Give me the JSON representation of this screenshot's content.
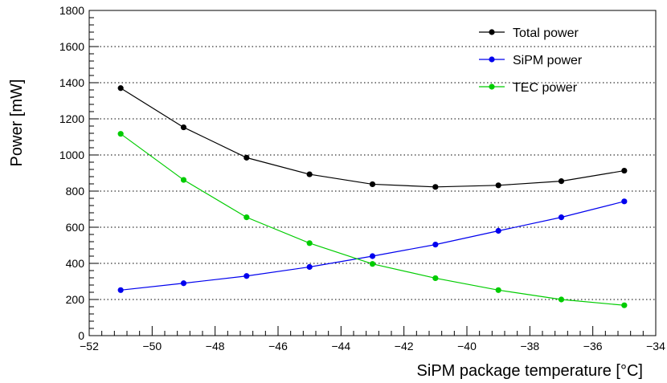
{
  "chart_data": {
    "type": "line",
    "title": "",
    "xlabel": "SiPM package temperature [°C]",
    "ylabel": "Power [mW]",
    "xlim": [
      -52,
      -34
    ],
    "ylim": [
      0,
      1800
    ],
    "xticks": [
      -52,
      -50,
      -48,
      -46,
      -44,
      -42,
      -40,
      -38,
      -36,
      -34
    ],
    "xtick_labels": [
      "−52",
      "−50",
      "−48",
      "−46",
      "−44",
      "−42",
      "−40",
      "−38",
      "−36",
      "−34"
    ],
    "yticks": [
      0,
      200,
      400,
      600,
      800,
      1000,
      1200,
      1400,
      1600,
      1800
    ],
    "ytick_labels": [
      "0",
      "200",
      "400",
      "600",
      "800",
      "1000",
      "1200",
      "1400",
      "1600",
      "1800"
    ],
    "grid": "horizontal dotted",
    "legend_position": "top-right",
    "x": [
      -51,
      -49,
      -47,
      -45,
      -43,
      -41,
      -39,
      -37,
      -35
    ],
    "series": [
      {
        "name": "Total power",
        "color": "#000000",
        "values": [
          1370,
          1153,
          985,
          893,
          838,
          823,
          832,
          855,
          913
        ]
      },
      {
        "name": "SiPM power",
        "color": "#0000ee",
        "values": [
          252,
          290,
          330,
          380,
          440,
          504,
          580,
          655,
          743
        ]
      },
      {
        "name": "TEC power",
        "color": "#00cc00",
        "values": [
          1117,
          862,
          655,
          512,
          397,
          318,
          252,
          200,
          168
        ]
      }
    ]
  }
}
